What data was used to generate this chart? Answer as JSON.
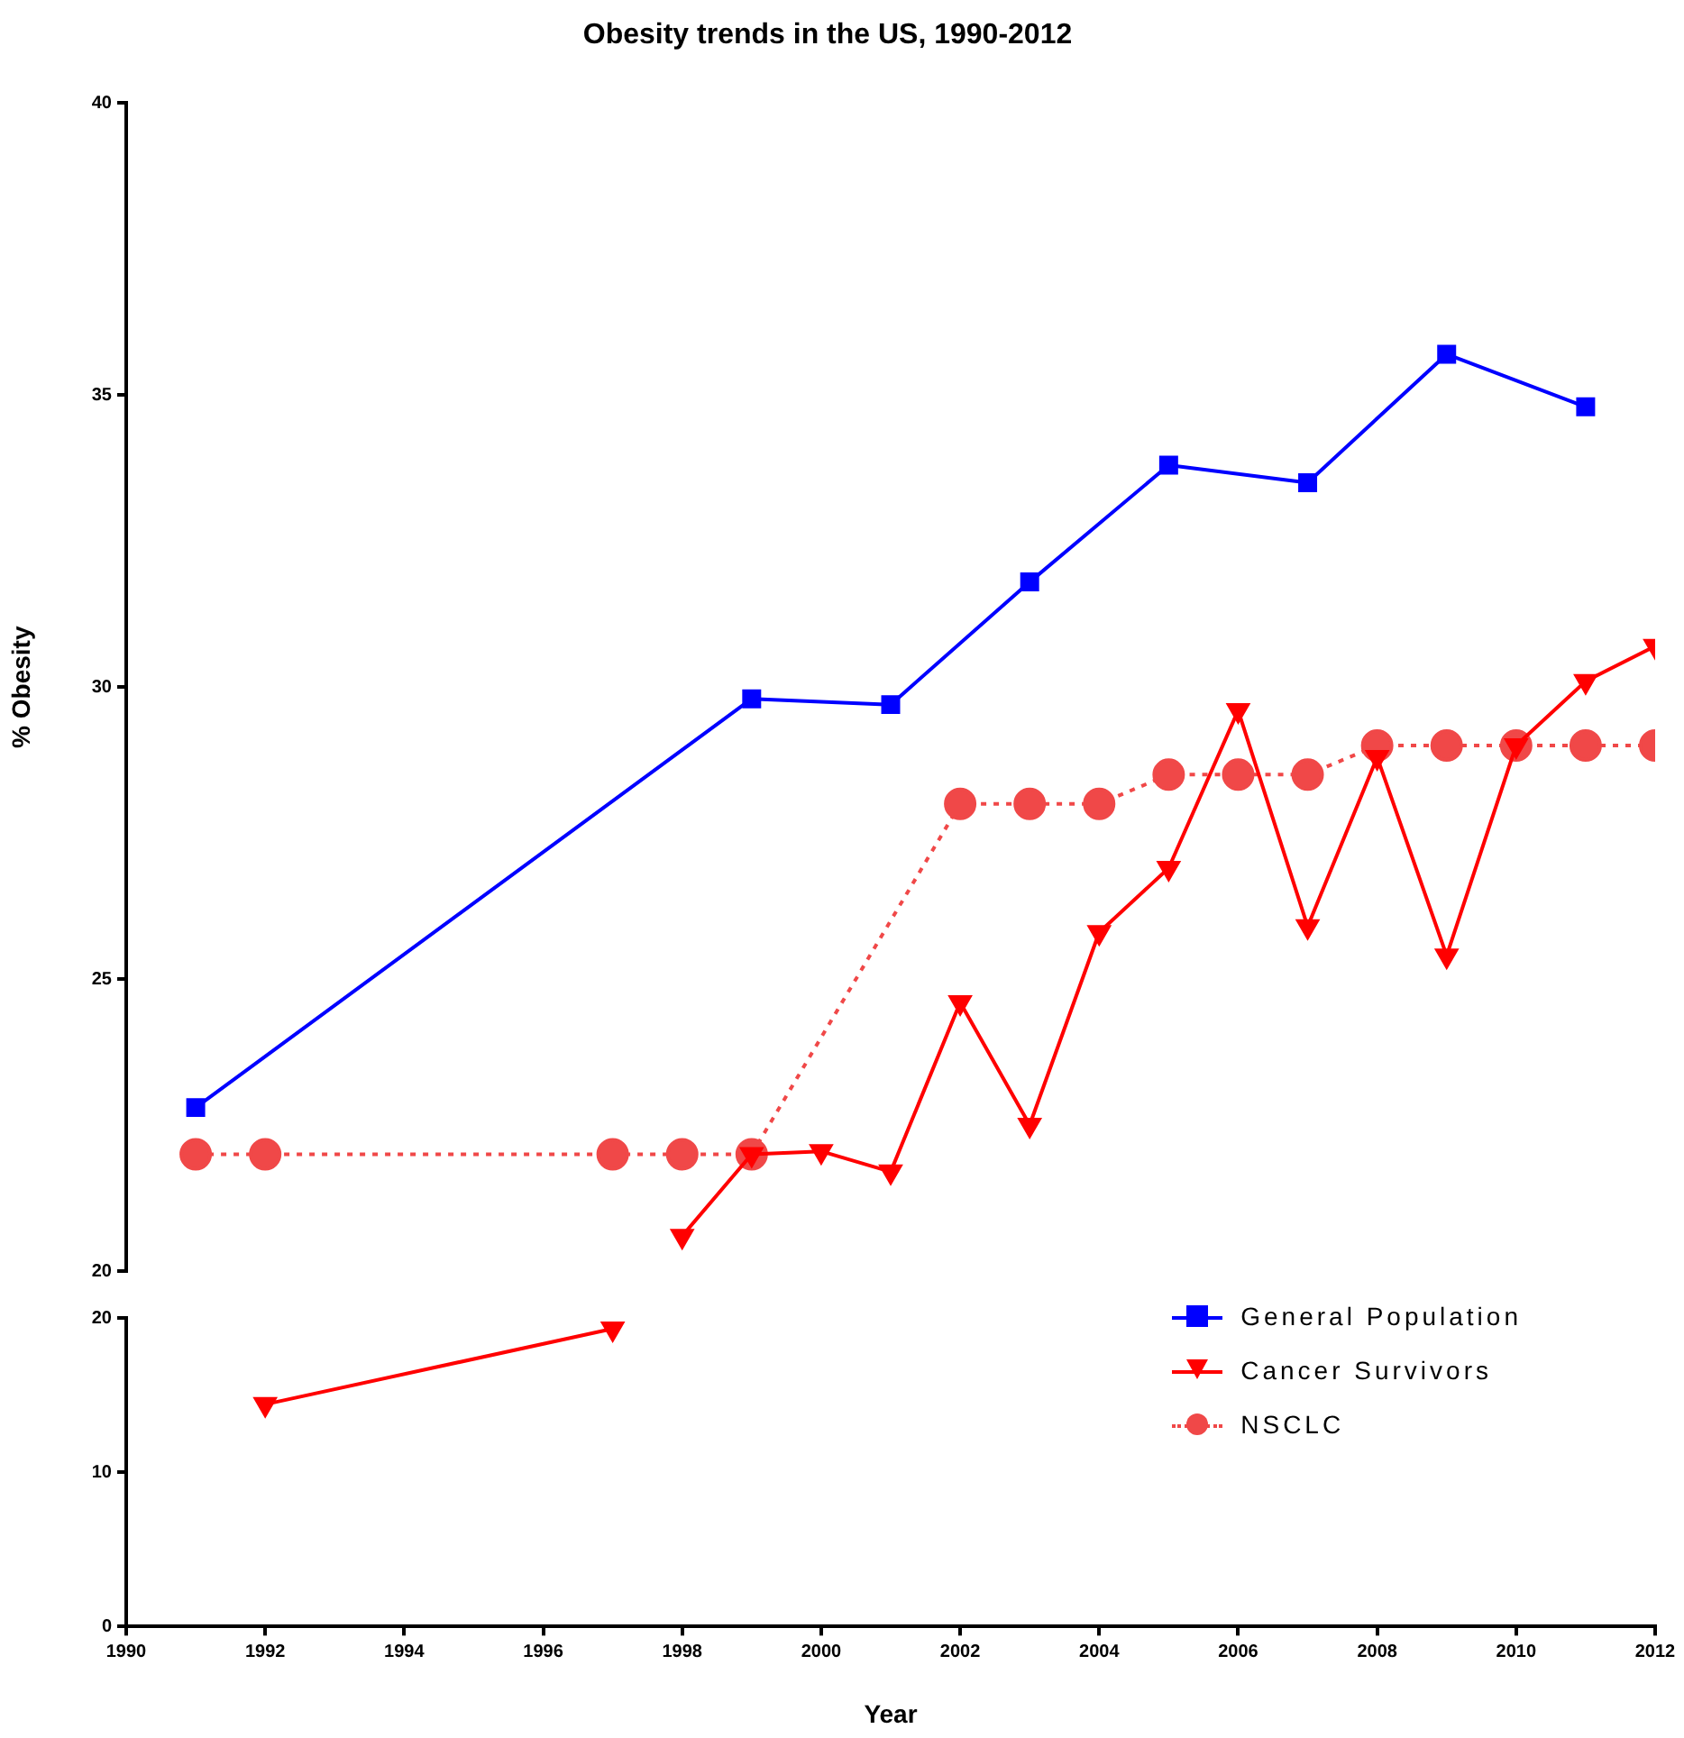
{
  "chart_data": [
    {
      "type": "line",
      "title": "Obesity trends in the US, 1990-2012",
      "ylabel": "% Obesity",
      "xlim": [
        1990,
        2012
      ],
      "ylim": [
        20,
        40
      ],
      "yticks": [
        20,
        25,
        30,
        35,
        40
      ],
      "tick_labels": "y",
      "grid": false,
      "legend": "bottom right",
      "series": [
        {
          "name": "General Population",
          "color": "#0000ff",
          "marker": "square",
          "line_style": "solid",
          "x": [
            1991,
            1999,
            2001,
            2003,
            2005,
            2007,
            2009,
            2011
          ],
          "values": [
            22.8,
            29.8,
            29.7,
            31.8,
            33.8,
            33.5,
            35.7,
            34.8
          ]
        },
        {
          "name": "Cancer Survivors",
          "color": "#ff0000",
          "marker": "triangle",
          "line_style": "solid",
          "x": [
            1998,
            1999,
            2000,
            2001,
            2002,
            2003,
            2004,
            2005,
            2006,
            2007,
            2008,
            2009,
            2010,
            2011,
            2012
          ],
          "values": [
            20.6,
            22.0,
            22.05,
            21.7,
            24.6,
            22.5,
            25.8,
            26.9,
            29.6,
            25.9,
            28.8,
            25.4,
            29.0,
            30.1,
            30.7
          ]
        },
        {
          "name": "NSCLC",
          "color": "#f04848",
          "marker": "circle",
          "line_style": "dotted",
          "x": [
            1991,
            1992,
            1997,
            1998,
            1999,
            2002,
            2003,
            2004,
            2005,
            2006,
            2007,
            2008,
            2009,
            2010,
            2011,
            2012
          ],
          "values": [
            22,
            22,
            22,
            22,
            22,
            28,
            28,
            28,
            28.5,
            28.5,
            28.5,
            29,
            29,
            29,
            29,
            29
          ]
        }
      ]
    },
    {
      "type": "line",
      "xlabel": "Year",
      "xlim": [
        1990,
        2012
      ],
      "xticks": [
        1990,
        1992,
        1994,
        1996,
        1998,
        2000,
        2002,
        2004,
        2006,
        2008,
        2010,
        2012
      ],
      "ylim": [
        0,
        20
      ],
      "yticks": [
        0,
        10,
        20
      ],
      "grid": false,
      "series": [
        {
          "color": "#ff0000",
          "marker": "triangle",
          "line_style": "solid",
          "x": [
            1992,
            1997
          ],
          "values": [
            14.4,
            19.3
          ]
        }
      ]
    }
  ]
}
